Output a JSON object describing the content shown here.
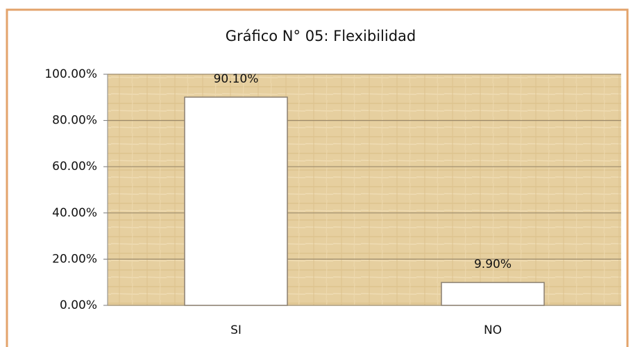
{
  "chart_data": {
    "type": "bar",
    "title": "Gráfico N° 05: Flexibilidad",
    "categories": [
      "SI",
      "NO"
    ],
    "values": [
      90.1,
      9.9
    ],
    "value_labels": [
      "90.10%",
      "9.90%"
    ],
    "color": "#ffffff",
    "ylim": [
      0,
      100
    ],
    "yticks": [
      {
        "value": 0,
        "label": "0.00%"
      },
      {
        "value": 20,
        "label": "20.00%"
      },
      {
        "value": 40,
        "label": "40.00%"
      },
      {
        "value": 60,
        "label": "60.00%"
      },
      {
        "value": 80,
        "label": "80.00%"
      },
      {
        "value": 100,
        "label": "100.00%"
      }
    ],
    "grid": true
  }
}
